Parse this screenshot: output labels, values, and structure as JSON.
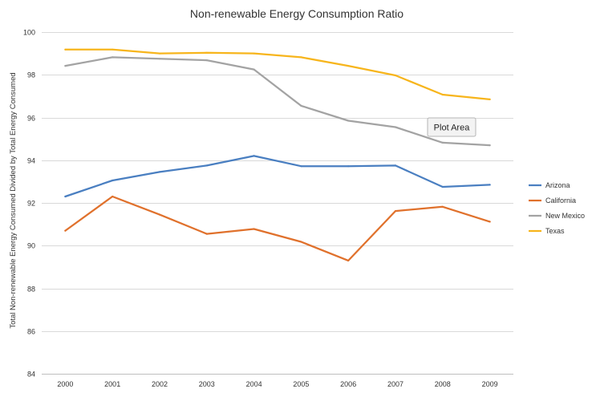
{
  "chart_data": {
    "type": "line",
    "title": "Non-renewable Energy Consumption Ratio",
    "xlabel": "",
    "ylabel": "Total Non-renewable Energy Consumed Divided by Total Energy Consumed",
    "categories": [
      "2000",
      "2001",
      "2002",
      "2003",
      "2004",
      "2005",
      "2006",
      "2007",
      "2008",
      "2009"
    ],
    "ylim": [
      84,
      100
    ],
    "yticks": [
      84,
      86,
      88,
      90,
      92,
      94,
      96,
      98,
      100
    ],
    "grid": true,
    "legend_position": "right",
    "series": [
      {
        "name": "Arizona",
        "color": "#4a7fc1",
        "values": [
          92.3,
          93.05,
          93.45,
          93.75,
          94.2,
          93.72,
          93.72,
          93.75,
          92.75,
          92.85
        ]
      },
      {
        "name": "California",
        "color": "#e0712c",
        "values": [
          90.7,
          92.3,
          91.45,
          90.55,
          90.78,
          90.18,
          89.3,
          91.62,
          91.82,
          91.12
        ]
      },
      {
        "name": "New Mexico",
        "color": "#a3a3a3",
        "values": [
          98.42,
          98.82,
          98.75,
          98.68,
          98.25,
          96.55,
          95.85,
          95.55,
          94.82,
          94.7
        ]
      },
      {
        "name": "Texas",
        "color": "#f7b51c",
        "values": [
          99.18,
          99.18,
          99.0,
          99.03,
          99.0,
          98.82,
          98.42,
          97.97,
          97.07,
          96.85
        ]
      }
    ]
  },
  "tooltip": {
    "text": "Plot Area"
  }
}
